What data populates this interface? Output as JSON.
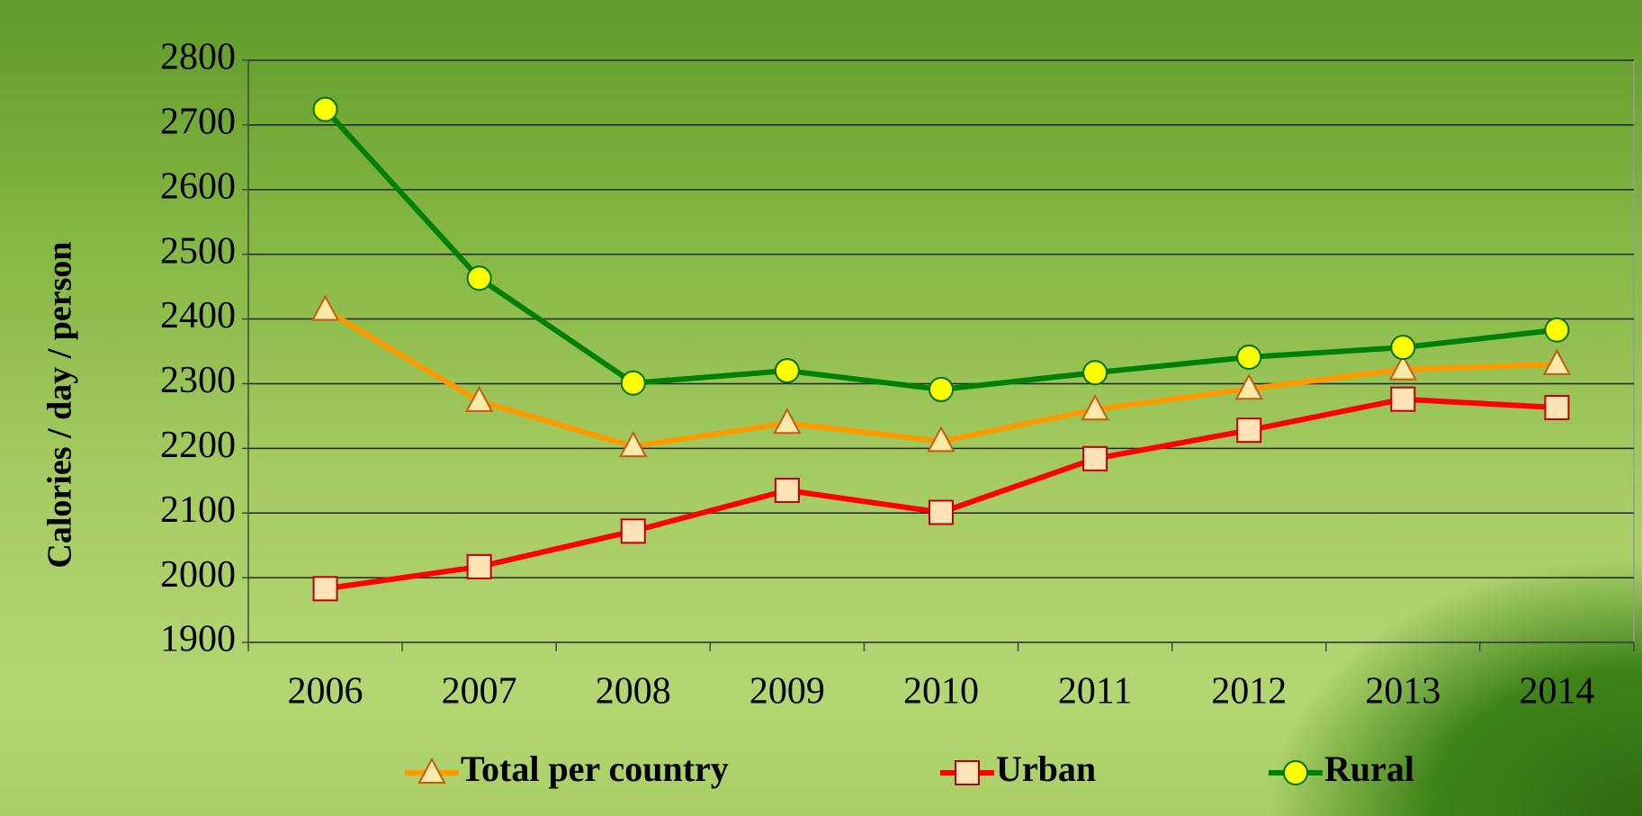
{
  "chart_data": {
    "type": "line",
    "y_label": "Calories / day / person",
    "categories": [
      "2006",
      "2007",
      "2008",
      "2009",
      "2010",
      "2011",
      "2012",
      "2013",
      "2014"
    ],
    "series": [
      {
        "name": "Total per country",
        "color": "#ff9900",
        "marker": "triangle",
        "marker_fill": "#fde9a8",
        "marker_stroke": "#c55a11",
        "values": [
          2414,
          2273,
          2203,
          2239,
          2211,
          2260,
          2292,
          2322,
          2330
        ]
      },
      {
        "name": "Urban",
        "color": "#ff0000",
        "marker": "square",
        "marker_fill": "#fde3b5",
        "marker_stroke": "#c00000",
        "values": [
          1983,
          2017,
          2072,
          2135,
          2101,
          2184,
          2228,
          2276,
          2263
        ]
      },
      {
        "name": "Rural",
        "color": "#008000",
        "marker": "circle",
        "marker_fill": "#ffff00",
        "marker_stroke": "#007000",
        "values": [
          2724,
          2463,
          2301,
          2320,
          2291,
          2317,
          2341,
          2356,
          2383
        ]
      }
    ],
    "ylim": [
      1900,
      2800
    ],
    "yticks": [
      1900,
      2000,
      2100,
      2200,
      2300,
      2400,
      2500,
      2600,
      2700,
      2800
    ],
    "grid": true,
    "legend": "bottom"
  }
}
